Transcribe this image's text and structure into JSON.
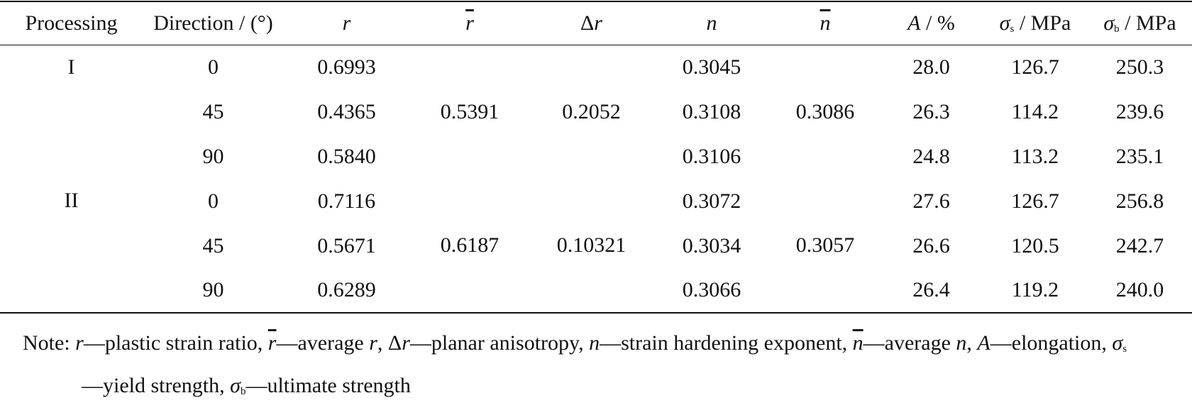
{
  "table": {
    "header": [
      [
        {
          "text": "Processing"
        }
      ],
      [
        {
          "text": "Direction / (°)"
        }
      ],
      [
        {
          "text": "r",
          "italic": true
        }
      ],
      [
        {
          "text": "r",
          "italic": true,
          "overline": true
        }
      ],
      [
        {
          "text": "Δ"
        },
        {
          "text": "r",
          "italic": true
        }
      ],
      [
        {
          "text": "n",
          "italic": true
        }
      ],
      [
        {
          "text": "n",
          "italic": true,
          "overline": true
        }
      ],
      [
        {
          "text": "A",
          "italic": true
        },
        {
          "text": " / %"
        }
      ],
      [
        {
          "text": "σ",
          "italic": true
        },
        {
          "text": "s",
          "sub": true
        },
        {
          "text": " / MPa"
        }
      ],
      [
        {
          "text": "σ",
          "italic": true
        },
        {
          "text": "b",
          "sub": true
        },
        {
          "text": " / MPa"
        }
      ]
    ],
    "groups": [
      {
        "processing": "I",
        "r_bar": "0.5391",
        "delta_r": "0.2052",
        "n_bar": "0.3086",
        "rows": [
          [
            "0",
            "0.6993",
            "0.3045",
            "28.0",
            "126.7",
            "250.3"
          ],
          [
            "45",
            "0.4365",
            "0.3108",
            "26.3",
            "114.2",
            "239.6"
          ],
          [
            "90",
            "0.5840",
            "0.3106",
            "24.8",
            "113.2",
            "235.1"
          ]
        ]
      },
      {
        "processing": "II",
        "r_bar": "0.6187",
        "delta_r": "0.10321",
        "n_bar": "0.3057",
        "rows": [
          [
            "0",
            "0.7116",
            "0.3072",
            "27.6",
            "126.7",
            "256.8"
          ],
          [
            "45",
            "0.5671",
            "0.3034",
            "26.6",
            "120.5",
            "242.7"
          ],
          [
            "90",
            "0.6289",
            "0.3066",
            "26.4",
            "119.2",
            "240.0"
          ]
        ]
      }
    ]
  },
  "note": [
    {
      "text": "Note: "
    },
    {
      "text": "r",
      "italic": true
    },
    {
      "text": "—plastic strain ratio, "
    },
    {
      "text": "r",
      "italic": true,
      "overline": true
    },
    {
      "text": "—average "
    },
    {
      "text": "r",
      "italic": true
    },
    {
      "text": ", Δ"
    },
    {
      "text": "r",
      "italic": true
    },
    {
      "text": "—planar anisotropy, "
    },
    {
      "text": "n",
      "italic": true
    },
    {
      "text": "—strain hardening exponent, "
    },
    {
      "text": "n",
      "italic": true,
      "overline": true
    },
    {
      "text": "—average "
    },
    {
      "text": "n",
      "italic": true
    },
    {
      "text": ", "
    },
    {
      "text": "A",
      "italic": true
    },
    {
      "text": "—elongation, "
    },
    {
      "text": "σ",
      "italic": true
    },
    {
      "text": "s",
      "sub": true
    },
    {
      "text": "—yield strength, "
    },
    {
      "text": "σ",
      "italic": true
    },
    {
      "text": "b",
      "sub": true
    },
    {
      "text": "—ultimate strength"
    }
  ]
}
